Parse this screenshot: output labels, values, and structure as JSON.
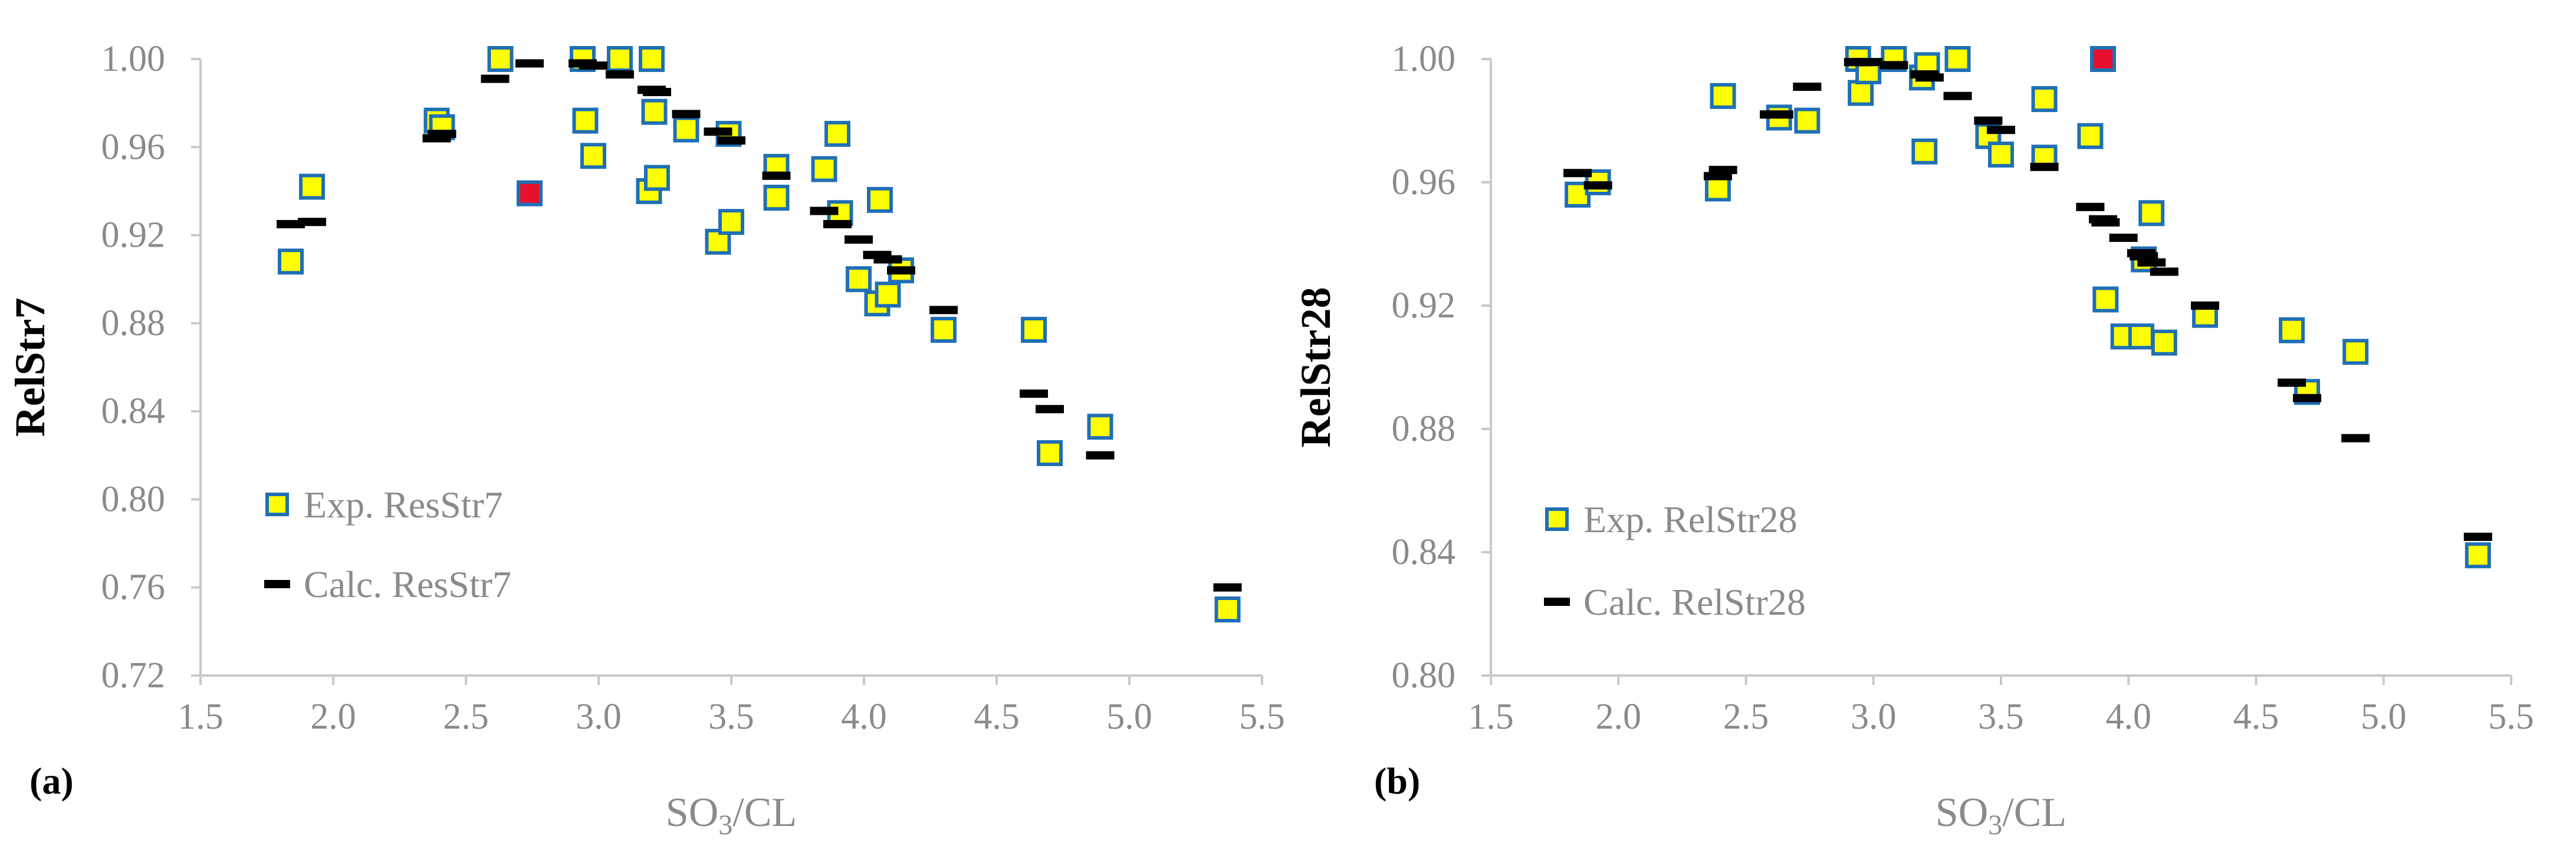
{
  "colors": {
    "marker_fill": "#ffff00",
    "marker_stroke": "#1f6fb5",
    "highlight_fill": "#e8112d",
    "calc_line": "#000000",
    "axis": "#c8c8c8",
    "text_gray": "#8a8a8a"
  },
  "chart_data": [
    {
      "type": "scatter",
      "panel_label": "(a)",
      "xlabel_main": "SO",
      "xlabel_sub": "3",
      "xlabel_rest": "/CL",
      "ylabel": "RelStr7",
      "xlim": [
        1.5,
        5.5
      ],
      "ylim": [
        0.72,
        1.0
      ],
      "xticks": [
        1.5,
        2.0,
        2.5,
        3.0,
        3.5,
        4.0,
        4.5,
        5.0,
        5.5
      ],
      "xtick_labels": [
        "1.5",
        "2.0",
        "2.5",
        "3.0",
        "3.5",
        "4.0",
        "4.5",
        "5.0",
        "5.5"
      ],
      "yticks": [
        0.72,
        0.76,
        0.8,
        0.84,
        0.88,
        0.92,
        0.96,
        1.0
      ],
      "ytick_labels": [
        "0.72",
        "0.76",
        "0.80",
        "0.84",
        "0.88",
        "0.92",
        "0.96",
        "1.00"
      ],
      "legend_position": "left",
      "series": [
        {
          "name": "Exp. ResStr7",
          "marker": "square",
          "points": [
            [
              1.84,
              0.908
            ],
            [
              1.92,
              0.942
            ],
            [
              2.39,
              0.972
            ],
            [
              2.41,
              0.969
            ],
            [
              2.63,
              1.0
            ],
            [
              2.74,
              0.939
            ],
            [
              2.94,
              1.0
            ],
            [
              2.95,
              0.972
            ],
            [
              2.98,
              0.956
            ],
            [
              3.08,
              1.0
            ],
            [
              3.19,
              0.94
            ],
            [
              3.2,
              1.0
            ],
            [
              3.21,
              0.976
            ],
            [
              3.22,
              0.946
            ],
            [
              3.33,
              0.968
            ],
            [
              3.45,
              0.917
            ],
            [
              3.49,
              0.966
            ],
            [
              3.5,
              0.926
            ],
            [
              3.67,
              0.951
            ],
            [
              3.67,
              0.937
            ],
            [
              3.85,
              0.95
            ],
            [
              3.9,
              0.966
            ],
            [
              3.91,
              0.93
            ],
            [
              3.98,
              0.9
            ],
            [
              4.05,
              0.889
            ],
            [
              4.06,
              0.936
            ],
            [
              4.09,
              0.893
            ],
            [
              4.14,
              0.904
            ],
            [
              4.3,
              0.877
            ],
            [
              4.64,
              0.877
            ],
            [
              4.7,
              0.821
            ],
            [
              4.89,
              0.833
            ],
            [
              5.37,
              0.75
            ]
          ],
          "highlight": [
            [
              2.74,
              0.939
            ]
          ]
        },
        {
          "name": "Calc. ResStr7",
          "marker": "dash",
          "points": [
            [
              1.84,
              0.925
            ],
            [
              1.92,
              0.926
            ],
            [
              2.39,
              0.964
            ],
            [
              2.41,
              0.966
            ],
            [
              2.61,
              0.991
            ],
            [
              2.74,
              0.998
            ],
            [
              2.94,
              0.998
            ],
            [
              2.98,
              0.997
            ],
            [
              3.08,
              0.993
            ],
            [
              3.2,
              0.986
            ],
            [
              3.22,
              0.985
            ],
            [
              3.33,
              0.975
            ],
            [
              3.45,
              0.967
            ],
            [
              3.5,
              0.963
            ],
            [
              3.67,
              0.947
            ],
            [
              3.85,
              0.931
            ],
            [
              3.9,
              0.925
            ],
            [
              3.98,
              0.918
            ],
            [
              4.05,
              0.911
            ],
            [
              4.09,
              0.909
            ],
            [
              4.14,
              0.904
            ],
            [
              4.3,
              0.886
            ],
            [
              4.64,
              0.848
            ],
            [
              4.7,
              0.841
            ],
            [
              4.89,
              0.82
            ],
            [
              5.37,
              0.76
            ]
          ]
        }
      ]
    },
    {
      "type": "scatter",
      "panel_label": "(b)",
      "xlabel_main": "SO",
      "xlabel_sub": "3",
      "xlabel_rest": "/CL",
      "ylabel": "RelStr28",
      "xlim": [
        1.5,
        5.5
      ],
      "ylim": [
        0.8,
        1.0
      ],
      "xticks": [
        1.5,
        2.0,
        2.5,
        3.0,
        3.5,
        4.0,
        4.5,
        5.0,
        5.5
      ],
      "xtick_labels": [
        "1.5",
        "2.0",
        "2.5",
        "3.0",
        "3.5",
        "4.0",
        "4.5",
        "5.0",
        "5.5"
      ],
      "yticks": [
        0.8,
        0.84,
        0.88,
        0.92,
        0.96,
        1.0
      ],
      "ytick_labels": [
        "0.80",
        "0.84",
        "0.88",
        "0.92",
        "0.96",
        "1.00"
      ],
      "legend_position": "left",
      "series": [
        {
          "name": "Exp. RelStr28",
          "marker": "square",
          "points": [
            [
              1.84,
              0.956
            ],
            [
              1.92,
              0.96
            ],
            [
              2.39,
              0.958
            ],
            [
              2.41,
              0.988
            ],
            [
              2.63,
              0.981
            ],
            [
              2.74,
              0.98
            ],
            [
              2.94,
              1.0
            ],
            [
              2.95,
              0.989
            ],
            [
              2.98,
              0.996
            ],
            [
              3.08,
              1.0
            ],
            [
              3.19,
              0.994
            ],
            [
              3.2,
              0.97
            ],
            [
              3.21,
              0.998
            ],
            [
              3.33,
              1.0
            ],
            [
              3.45,
              0.975
            ],
            [
              3.5,
              0.969
            ],
            [
              3.67,
              0.987
            ],
            [
              3.67,
              0.968
            ],
            [
              3.85,
              0.975
            ],
            [
              3.9,
              1.0
            ],
            [
              3.91,
              0.922
            ],
            [
              3.98,
              0.91
            ],
            [
              4.05,
              0.91
            ],
            [
              4.06,
              0.935
            ],
            [
              4.09,
              0.95
            ],
            [
              4.14,
              0.908
            ],
            [
              4.3,
              0.917
            ],
            [
              4.64,
              0.912
            ],
            [
              4.7,
              0.892
            ],
            [
              4.89,
              0.905
            ],
            [
              5.37,
              0.839
            ]
          ],
          "highlight": [
            [
              3.9,
              1.0
            ]
          ]
        },
        {
          "name": "Calc. RelStr28",
          "marker": "dash",
          "points": [
            [
              1.84,
              0.963
            ],
            [
              1.92,
              0.959
            ],
            [
              2.39,
              0.962
            ],
            [
              2.41,
              0.964
            ],
            [
              2.61,
              0.982
            ],
            [
              2.63,
              0.982
            ],
            [
              2.74,
              0.991
            ],
            [
              2.94,
              0.999
            ],
            [
              2.98,
              0.999
            ],
            [
              3.08,
              0.998
            ],
            [
              3.2,
              0.995
            ],
            [
              3.22,
              0.994
            ],
            [
              3.33,
              0.988
            ],
            [
              3.45,
              0.98
            ],
            [
              3.5,
              0.977
            ],
            [
              3.67,
              0.965
            ],
            [
              3.85,
              0.952
            ],
            [
              3.9,
              0.948
            ],
            [
              3.91,
              0.947
            ],
            [
              3.98,
              0.942
            ],
            [
              4.05,
              0.937
            ],
            [
              4.06,
              0.936
            ],
            [
              4.09,
              0.934
            ],
            [
              4.14,
              0.931
            ],
            [
              4.3,
              0.92
            ],
            [
              4.64,
              0.895
            ],
            [
              4.7,
              0.89
            ],
            [
              4.89,
              0.877
            ],
            [
              5.37,
              0.845
            ]
          ]
        }
      ]
    }
  ]
}
